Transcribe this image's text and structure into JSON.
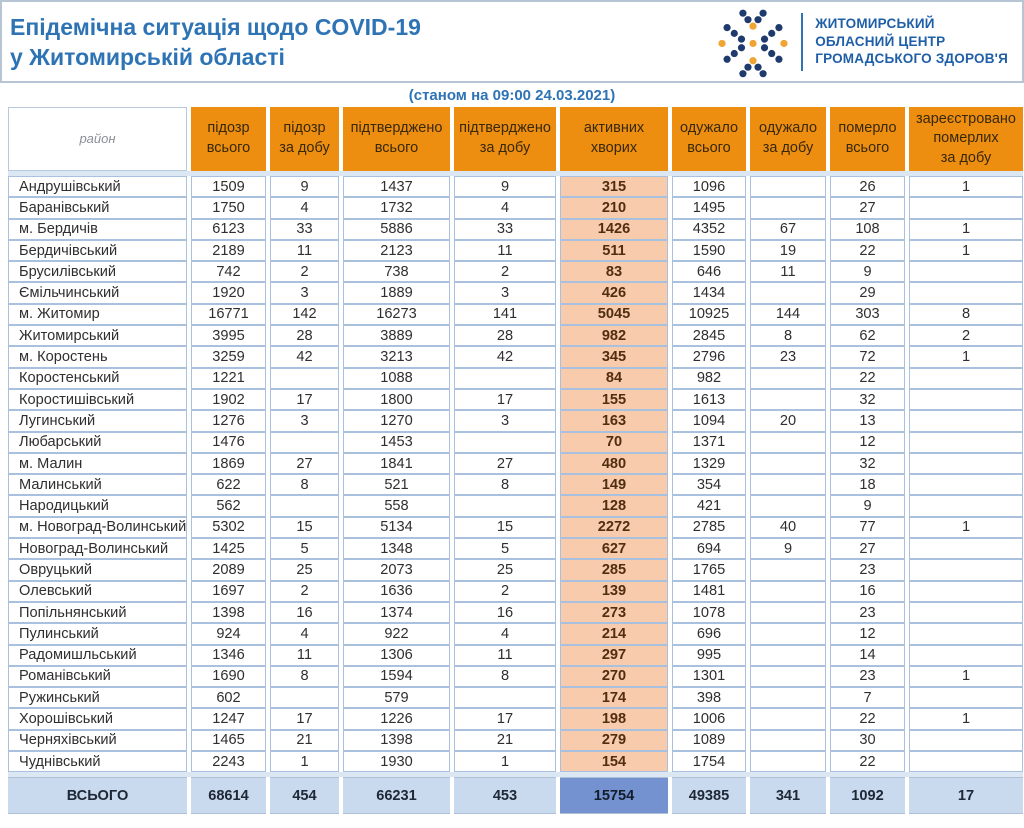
{
  "header": {
    "title_line1": "Епідемічна ситуація щодо COVID-19",
    "title_line2": "у Житомирській області",
    "logo": {
      "line1": "ЖИТОМИРСЬКИЙ",
      "line2": "ОБЛАСНИЙ ЦЕНТР",
      "line3": "ГРОМАДСЬКОГО ЗДОРОВ'Я"
    }
  },
  "subtitle": "(станом на 09:00 24.03.2021)",
  "colors": {
    "title_blue": "#2E74B5",
    "logo_navy": "#1F3B6E",
    "logo_orange": "#F0A432",
    "header_orange": "#ED8E11",
    "active_peach": "#F8CBAD",
    "grid_blue": "#A9C1DE",
    "total_row_blue": "#C9D9EE",
    "total_active_blue": "#7392CF"
  },
  "table": {
    "columns": [
      {
        "key": "rayon",
        "label": "район"
      },
      {
        "key": "suspected-total",
        "label": "підозр\nвсього"
      },
      {
        "key": "suspected-day",
        "label": "підозр\nза добу"
      },
      {
        "key": "confirmed-total",
        "label": "підтверджено\nвсього"
      },
      {
        "key": "confirmed-day",
        "label": "підтверджено\nза добу"
      },
      {
        "key": "active-cases",
        "label": "активних\nхворих"
      },
      {
        "key": "recovered-total",
        "label": "одужало\nвсього"
      },
      {
        "key": "recovered-day",
        "label": "одужало\nза добу"
      },
      {
        "key": "died-total",
        "label": "померло\nвсього"
      },
      {
        "key": "deaths-registered-day",
        "label": "зареєстровано\nпомерлих\nза добу"
      }
    ],
    "rows": [
      {
        "rayon": "Андрушівський",
        "values": [
          "1509",
          "9",
          "1437",
          "9",
          "315",
          "1096",
          "",
          "26",
          "1"
        ]
      },
      {
        "rayon": "Баранівський",
        "values": [
          "1750",
          "4",
          "1732",
          "4",
          "210",
          "1495",
          "",
          "27",
          ""
        ]
      },
      {
        "rayon": "м. Бердичів",
        "values": [
          "6123",
          "33",
          "5886",
          "33",
          "1426",
          "4352",
          "67",
          "108",
          "1"
        ]
      },
      {
        "rayon": "Бердичівський",
        "values": [
          "2189",
          "11",
          "2123",
          "11",
          "511",
          "1590",
          "19",
          "22",
          "1"
        ]
      },
      {
        "rayon": "Брусилівський",
        "values": [
          "742",
          "2",
          "738",
          "2",
          "83",
          "646",
          "11",
          "9",
          ""
        ]
      },
      {
        "rayon": "Ємільчинський",
        "values": [
          "1920",
          "3",
          "1889",
          "3",
          "426",
          "1434",
          "",
          "29",
          ""
        ]
      },
      {
        "rayon": "м. Житомир",
        "values": [
          "16771",
          "142",
          "16273",
          "141",
          "5045",
          "10925",
          "144",
          "303",
          "8"
        ]
      },
      {
        "rayon": "Житомирський",
        "values": [
          "3995",
          "28",
          "3889",
          "28",
          "982",
          "2845",
          "8",
          "62",
          "2"
        ]
      },
      {
        "rayon": "м. Коростень",
        "values": [
          "3259",
          "42",
          "3213",
          "42",
          "345",
          "2796",
          "23",
          "72",
          "1"
        ]
      },
      {
        "rayon": "Коростенський",
        "values": [
          "1221",
          "",
          "1088",
          "",
          "84",
          "982",
          "",
          "22",
          ""
        ]
      },
      {
        "rayon": "Коростишівський",
        "values": [
          "1902",
          "17",
          "1800",
          "17",
          "155",
          "1613",
          "",
          "32",
          ""
        ]
      },
      {
        "rayon": "Лугинський",
        "values": [
          "1276",
          "3",
          "1270",
          "3",
          "163",
          "1094",
          "20",
          "13",
          ""
        ]
      },
      {
        "rayon": "Любарський",
        "values": [
          "1476",
          "",
          "1453",
          "",
          "70",
          "1371",
          "",
          "12",
          ""
        ]
      },
      {
        "rayon": "м. Малин",
        "values": [
          "1869",
          "27",
          "1841",
          "27",
          "480",
          "1329",
          "",
          "32",
          ""
        ]
      },
      {
        "rayon": "Малинський",
        "values": [
          "622",
          "8",
          "521",
          "8",
          "149",
          "354",
          "",
          "18",
          ""
        ]
      },
      {
        "rayon": "Народицький",
        "values": [
          "562",
          "",
          "558",
          "",
          "128",
          "421",
          "",
          "9",
          ""
        ]
      },
      {
        "rayon": "м. Новоград-Волинський",
        "values": [
          "5302",
          "15",
          "5134",
          "15",
          "2272",
          "2785",
          "40",
          "77",
          "1"
        ]
      },
      {
        "rayon": "Новоград-Волинський",
        "values": [
          "1425",
          "5",
          "1348",
          "5",
          "627",
          "694",
          "9",
          "27",
          ""
        ]
      },
      {
        "rayon": "Овруцький",
        "values": [
          "2089",
          "25",
          "2073",
          "25",
          "285",
          "1765",
          "",
          "23",
          ""
        ]
      },
      {
        "rayon": "Олевський",
        "values": [
          "1697",
          "2",
          "1636",
          "2",
          "139",
          "1481",
          "",
          "16",
          ""
        ]
      },
      {
        "rayon": "Попільнянський",
        "values": [
          "1398",
          "16",
          "1374",
          "16",
          "273",
          "1078",
          "",
          "23",
          ""
        ]
      },
      {
        "rayon": "Пулинський",
        "values": [
          "924",
          "4",
          "922",
          "4",
          "214",
          "696",
          "",
          "12",
          ""
        ]
      },
      {
        "rayon": "Радомишльський",
        "values": [
          "1346",
          "11",
          "1306",
          "11",
          "297",
          "995",
          "",
          "14",
          ""
        ]
      },
      {
        "rayon": "Романівський",
        "values": [
          "1690",
          "8",
          "1594",
          "8",
          "270",
          "1301",
          "",
          "23",
          "1"
        ]
      },
      {
        "rayon": "Ружинський",
        "values": [
          "602",
          "",
          "579",
          "",
          "174",
          "398",
          "",
          "7",
          ""
        ]
      },
      {
        "rayon": "Хорошівський",
        "values": [
          "1247",
          "17",
          "1226",
          "17",
          "198",
          "1006",
          "",
          "22",
          "1"
        ]
      },
      {
        "rayon": "Черняхівський",
        "values": [
          "1465",
          "21",
          "1398",
          "21",
          "279",
          "1089",
          "",
          "30",
          ""
        ]
      },
      {
        "rayon": "Чуднівський",
        "values": [
          "2243",
          "1",
          "1930",
          "1",
          "154",
          "1754",
          "",
          "22",
          ""
        ]
      }
    ],
    "total": {
      "label": "ВСЬОГО",
      "values": [
        "68614",
        "454",
        "66231",
        "453",
        "15754",
        "49385",
        "341",
        "1092",
        "17"
      ]
    }
  }
}
